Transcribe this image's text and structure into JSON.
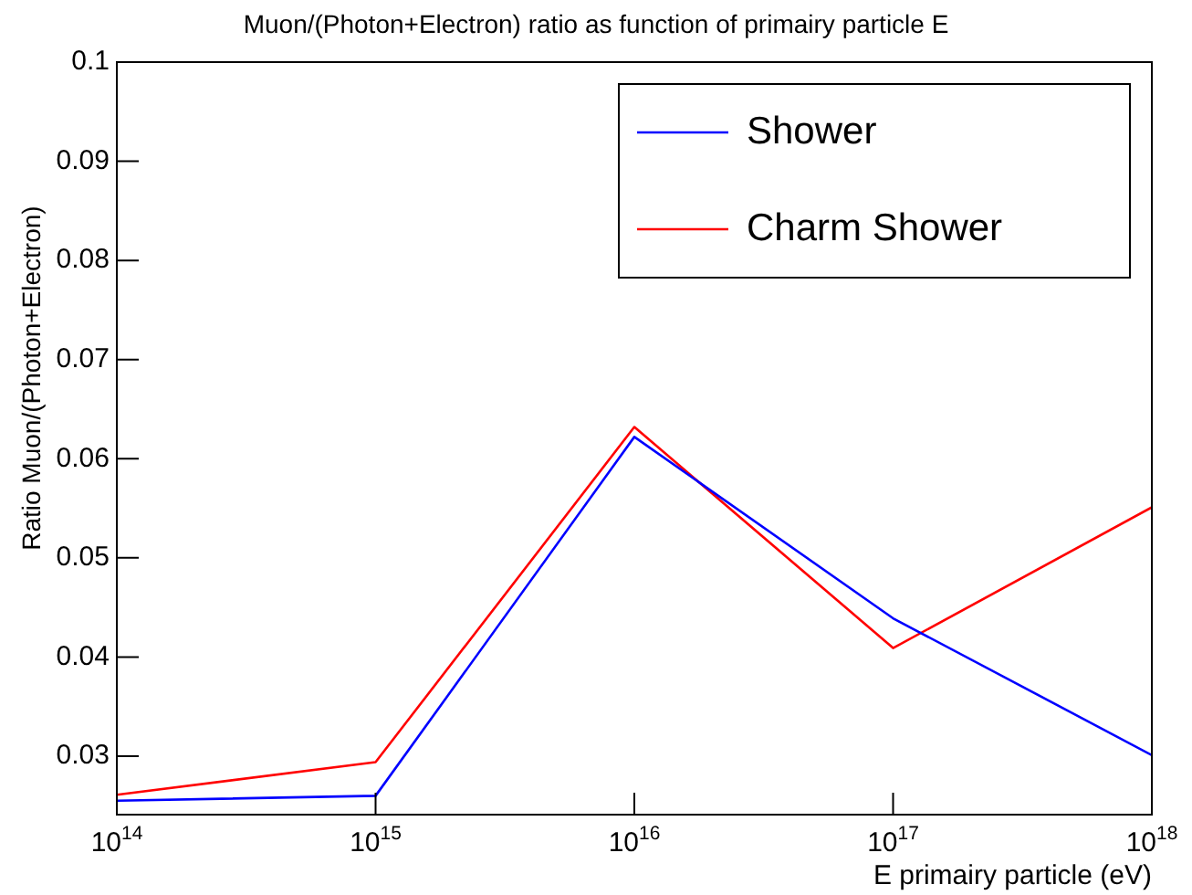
{
  "chart_data": {
    "type": "line",
    "title": "Muon/(Photon+Electron) ratio as function of primairy particle E",
    "xlabel": "E primairy particle (eV)",
    "ylabel": "Ratio Muon/(Photon+Electron)",
    "log": "x",
    "x": [
      100000000000000.0,
      1000000000000000.0,
      1e+16,
      1e+17,
      1e+18
    ],
    "series": [
      {
        "name": "Shower",
        "color": "#0000ff",
        "values": [
          0.0255,
          0.026,
          0.0622,
          0.0439,
          0.0301
        ]
      },
      {
        "name": "Charm Shower",
        "color": "#ff0000",
        "values": [
          0.0261,
          0.0294,
          0.0632,
          0.0409,
          0.0551
        ]
      }
    ],
    "xlim": [
      100000000000000.0,
      1e+18
    ],
    "xticks": [
      {
        "value": 100000000000000.0,
        "label": "10$^{14}$"
      },
      {
        "value": 1000000000000000.0,
        "label": "10$^{15}$"
      },
      {
        "value": 1e+16,
        "label": "10$^{16}$"
      },
      {
        "value": 1e+17,
        "label": "10$^{17}$"
      },
      {
        "value": 1e+18,
        "label": "10$^{18}$"
      }
    ],
    "ylim": [
      0.0241,
      0.1
    ],
    "yticks": [
      0.03,
      0.04,
      0.05,
      0.06,
      0.07,
      0.08,
      0.09,
      0.1
    ],
    "grid": false,
    "legend": "top right",
    "marker": "none",
    "line_style": "solid"
  }
}
